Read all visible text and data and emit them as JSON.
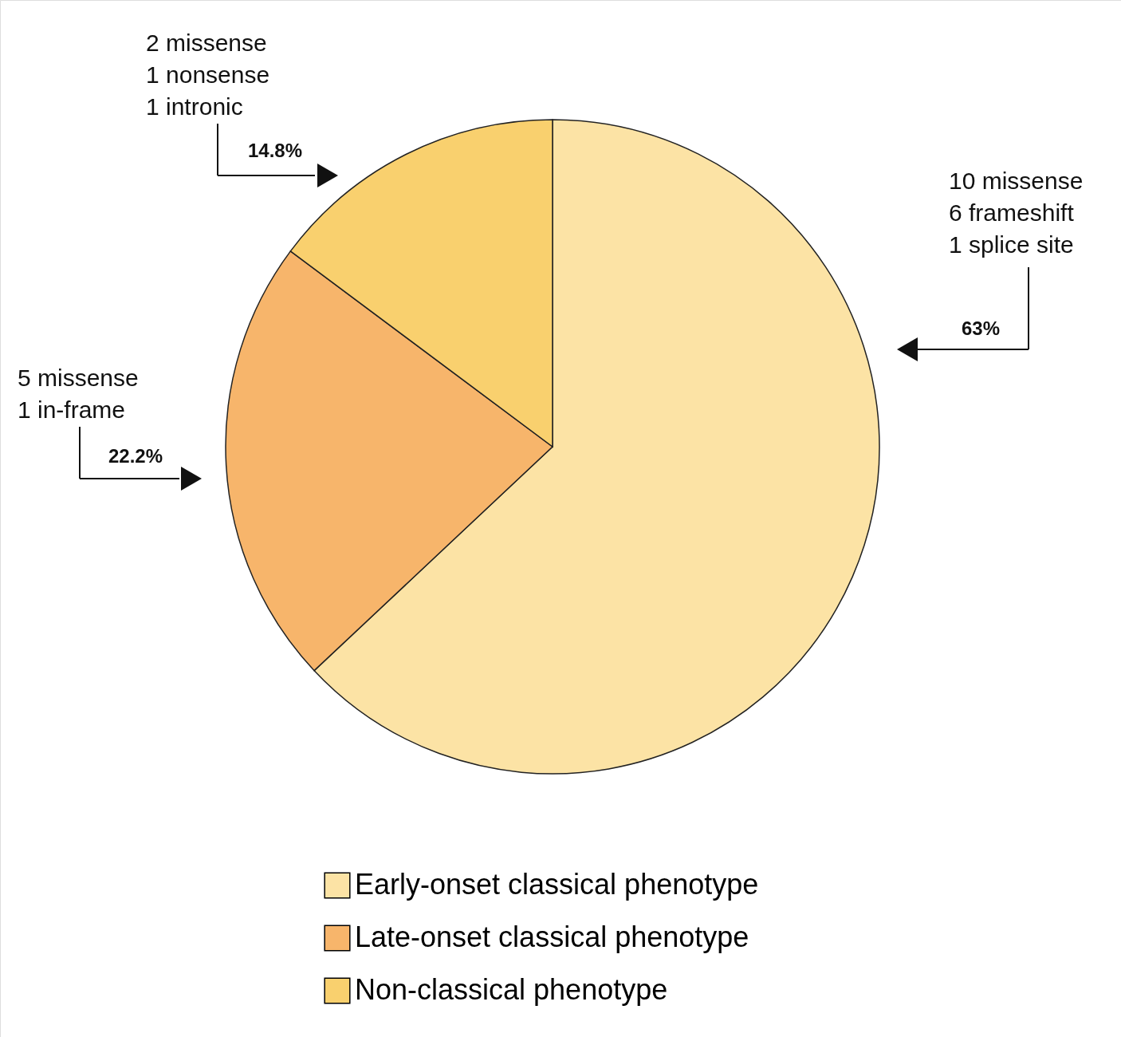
{
  "chart_data": {
    "type": "pie",
    "categories": [
      "Early-onset classical phenotype",
      "Late-onset classical phenotype",
      "Non-classical phenotype"
    ],
    "values": [
      63,
      22.2,
      14.8
    ],
    "colors": [
      "#fce3a5",
      "#f7b56b",
      "#f9d06e"
    ],
    "value_labels": [
      "63%",
      "22.2%",
      "14.8%"
    ],
    "annotations": [
      "10 missense\n6 frameshift\n1 splice site",
      "5 missense\n1 in-frame",
      "2 missense\n1 nonsense\n1 intronic"
    ],
    "legend": "bottom"
  }
}
